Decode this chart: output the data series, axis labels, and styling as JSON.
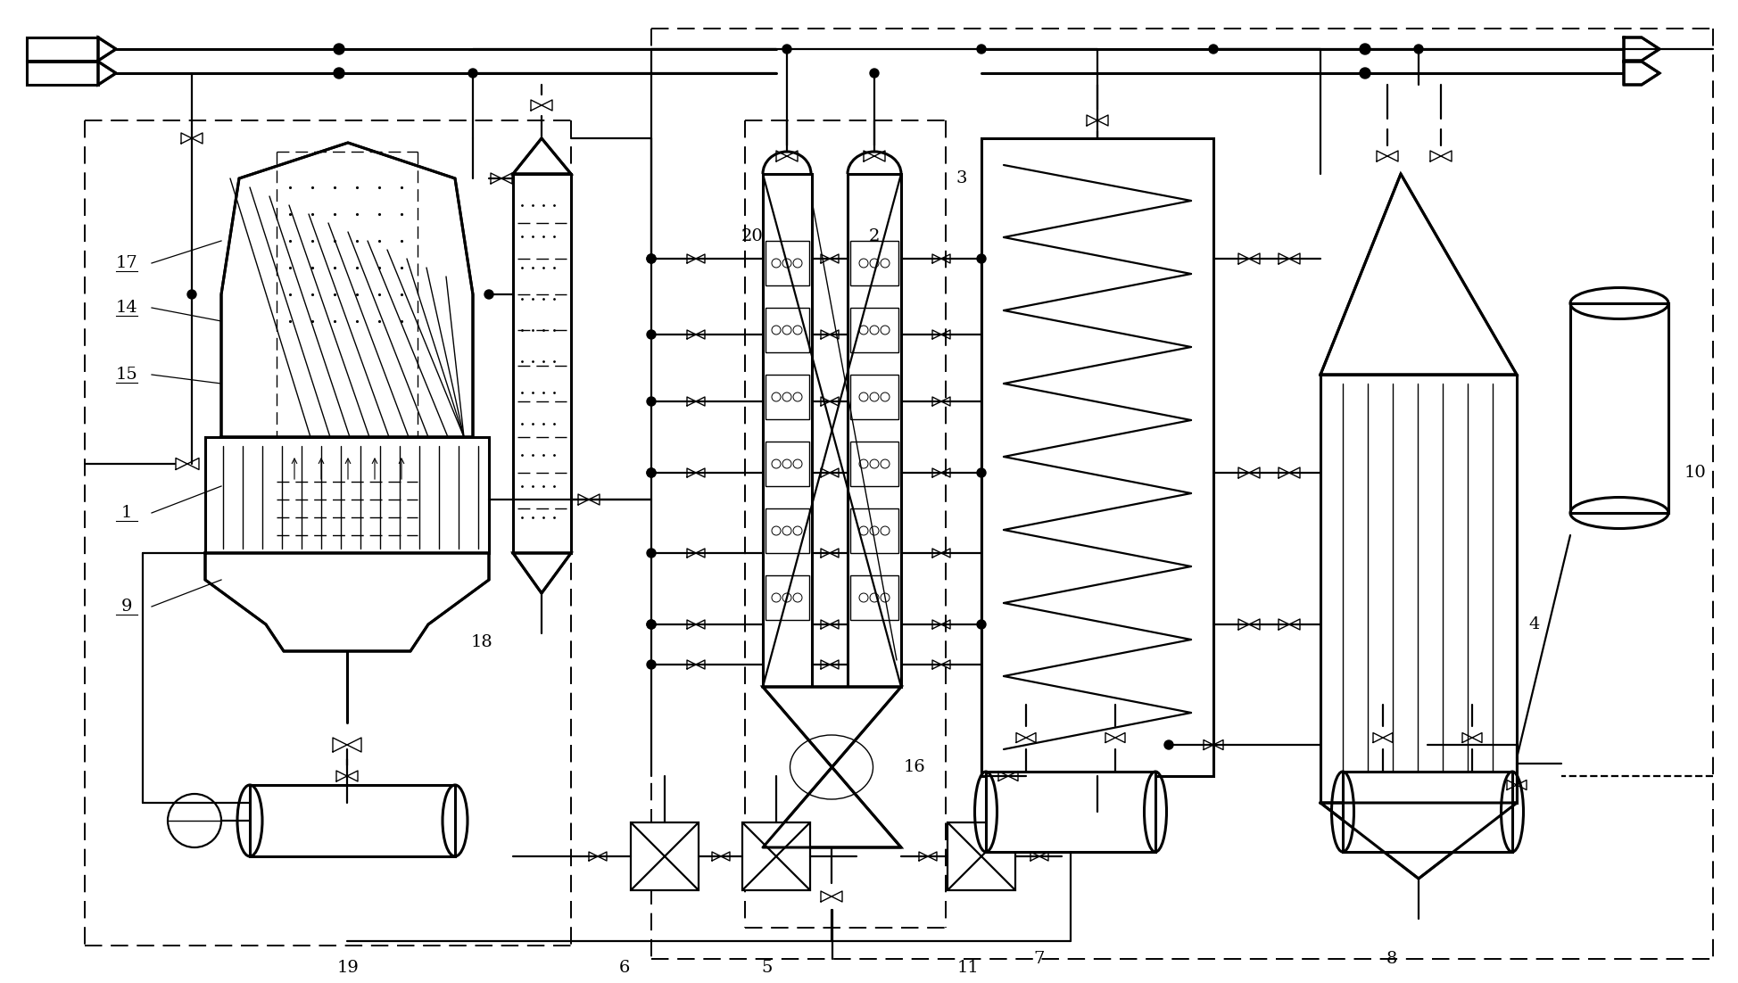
{
  "bg_color": "#ffffff",
  "line_color": "#000000",
  "fig_width": 19.49,
  "fig_height": 11.02,
  "dpi": 100
}
